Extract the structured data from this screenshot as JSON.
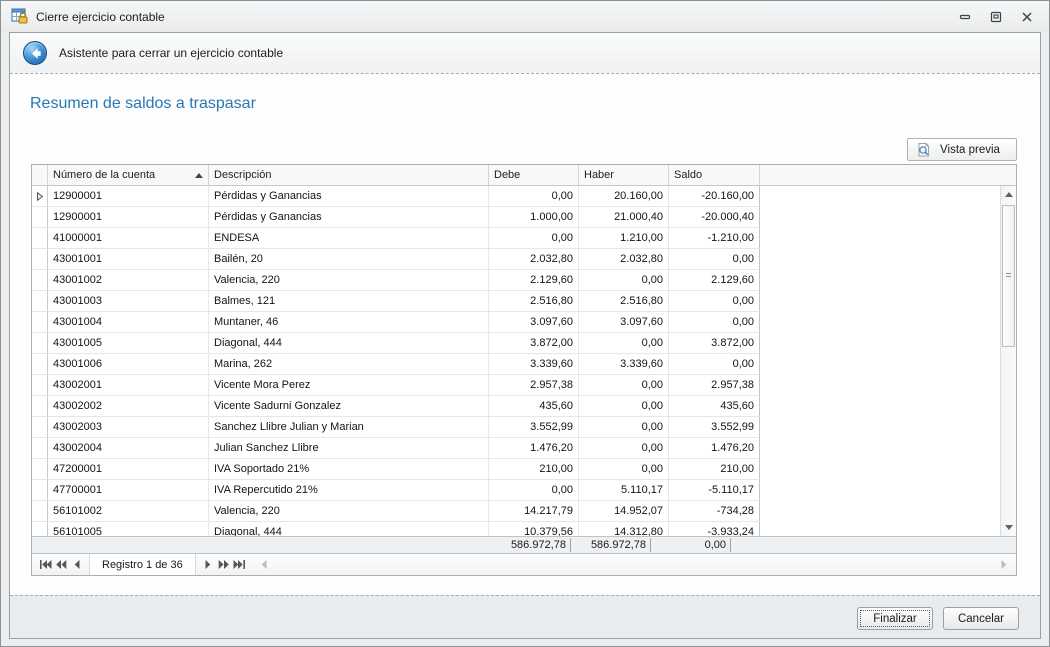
{
  "window": {
    "title": "Cierre ejercicio contable",
    "controls": [
      "minimize",
      "restore",
      "close"
    ]
  },
  "wizard": {
    "title": "Asistente para cerrar un ejercicio contable"
  },
  "page": {
    "heading": "Resumen de saldos a traspasar"
  },
  "toolbar": {
    "preview_label": "Vista previa"
  },
  "grid": {
    "columns": [
      "Número de la cuenta",
      "Descripción",
      "Debe",
      "Haber",
      "Saldo"
    ],
    "sort": {
      "column": "Número de la cuenta",
      "direction": "asc"
    },
    "selected_row_index": 0,
    "rows": [
      {
        "account": "12900001",
        "description": "Pérdidas y Ganancias",
        "debe": "0,00",
        "haber": "20.160,00",
        "saldo": "-20.160,00"
      },
      {
        "account": "12900001",
        "description": "Pérdidas y Ganancias",
        "debe": "1.000,00",
        "haber": "21.000,40",
        "saldo": "-20.000,40"
      },
      {
        "account": "41000001",
        "description": "ENDESA",
        "debe": "0,00",
        "haber": "1.210,00",
        "saldo": "-1.210,00"
      },
      {
        "account": "43001001",
        "description": "Bailén, 20",
        "debe": "2.032,80",
        "haber": "2.032,80",
        "saldo": "0,00"
      },
      {
        "account": "43001002",
        "description": "Valencia, 220",
        "debe": "2.129,60",
        "haber": "0,00",
        "saldo": "2.129,60"
      },
      {
        "account": "43001003",
        "description": "Balmes, 121",
        "debe": "2.516,80",
        "haber": "2.516,80",
        "saldo": "0,00"
      },
      {
        "account": "43001004",
        "description": "Muntaner, 46",
        "debe": "3.097,60",
        "haber": "3.097,60",
        "saldo": "0,00"
      },
      {
        "account": "43001005",
        "description": "Diagonal, 444",
        "debe": "3.872,00",
        "haber": "0,00",
        "saldo": "3.872,00"
      },
      {
        "account": "43001006",
        "description": "Marina, 262",
        "debe": "3.339,60",
        "haber": "3.339,60",
        "saldo": "0,00"
      },
      {
        "account": "43002001",
        "description": "Vicente Mora Perez",
        "debe": "2.957,38",
        "haber": "0,00",
        "saldo": "2.957,38"
      },
      {
        "account": "43002002",
        "description": "Vicente Sadurni Gonzalez",
        "debe": "435,60",
        "haber": "0,00",
        "saldo": "435,60"
      },
      {
        "account": "43002003",
        "description": "Sanchez Llibre Julian y Marian",
        "debe": "3.552,99",
        "haber": "0,00",
        "saldo": "3.552,99"
      },
      {
        "account": "43002004",
        "description": "Julian Sanchez Llibre",
        "debe": "1.476,20",
        "haber": "0,00",
        "saldo": "1.476,20"
      },
      {
        "account": "47200001",
        "description": "IVA Soportado 21%",
        "debe": "210,00",
        "haber": "0,00",
        "saldo": "210,00"
      },
      {
        "account": "47700001",
        "description": "IVA Repercutido 21%",
        "debe": "0,00",
        "haber": "5.110,17",
        "saldo": "-5.110,17"
      },
      {
        "account": "56101002",
        "description": "Valencia, 220",
        "debe": "14.217,79",
        "haber": "14.952,07",
        "saldo": "-734,28"
      },
      {
        "account": "56101005",
        "description": "Diagonal, 444",
        "debe": "10.379,56",
        "haber": "14.312,80",
        "saldo": "-3.933,24"
      }
    ],
    "partial_last_row": true,
    "totals": {
      "debe": "586.972,78",
      "haber": "586.972,78",
      "saldo": "0,00"
    }
  },
  "navigator": {
    "record_label": "Registro 1 de 36",
    "buttons": [
      "first",
      "prev-page",
      "prev",
      "next",
      "next-page",
      "last"
    ]
  },
  "footer": {
    "finish_label": "Finalizar",
    "cancel_label": "Cancelar"
  },
  "icons": {
    "app": "table-lock-icon",
    "back": "back-arrow-icon",
    "preview": "magnifier-page-icon",
    "sort": "sort-ascending-arrow",
    "row_indicator": "current-row-arrow"
  },
  "colors": {
    "heading_blue": "#2878b4",
    "back_button_blue": "#1f6cb4",
    "lock_yellow": "#f0c040",
    "totals_bg": "#eef1f4"
  }
}
